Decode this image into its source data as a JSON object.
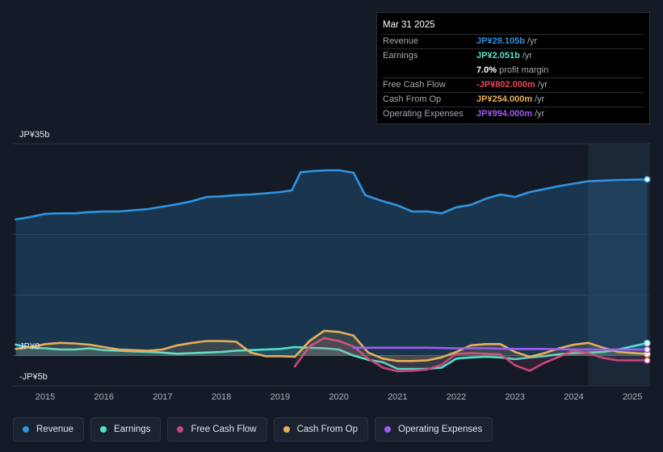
{
  "tooltip": {
    "date": "Mar 31 2025",
    "rows": [
      {
        "label": "Revenue",
        "value": "JP¥29.105b",
        "unit": "/yr"
      },
      {
        "label": "Earnings",
        "value": "JP¥2.051b",
        "unit": "/yr"
      },
      {
        "label": "",
        "value": "7.0%",
        "unit": "profit margin"
      },
      {
        "label": "Free Cash Flow",
        "value": "-JP¥802.000m",
        "unit": "/yr"
      },
      {
        "label": "Cash From Op",
        "value": "JP¥254.000m",
        "unit": "/yr"
      },
      {
        "label": "Operating Expenses",
        "value": "JP¥994.000m",
        "unit": "/yr"
      }
    ]
  },
  "legend": [
    {
      "label": "Revenue",
      "color": "#2e95e3"
    },
    {
      "label": "Earnings",
      "color": "#55e0cc"
    },
    {
      "label": "Free Cash Flow",
      "color": "#c7477a"
    },
    {
      "label": "Cash From Op",
      "color": "#e8ae5a"
    },
    {
      "label": "Operating Expenses",
      "color": "#9f5cf0"
    }
  ],
  "chart_data": {
    "type": "line",
    "title": "",
    "units": "JP¥ billions",
    "ylim": [
      -5,
      35
    ],
    "y_labels": [
      {
        "value": 35,
        "text": "JP¥35b"
      },
      {
        "value": 0,
        "text": "JP¥0"
      },
      {
        "value": -5,
        "text": "-JP¥5b"
      }
    ],
    "gridlines": [
      35,
      20,
      10,
      0,
      -5
    ],
    "xlim": [
      2014.45,
      2025.3
    ],
    "x_ticks": [
      "2015",
      "2016",
      "2017",
      "2018",
      "2019",
      "2020",
      "2021",
      "2022",
      "2023",
      "2024",
      "2025"
    ],
    "highlight_start": 2024.25,
    "series": [
      {
        "name": "Revenue",
        "color": "#2e95e3",
        "fill": true,
        "points": [
          [
            2014.5,
            22.5
          ],
          [
            2014.75,
            22.9
          ],
          [
            2015.0,
            23.4
          ],
          [
            2015.25,
            23.5
          ],
          [
            2015.5,
            23.5
          ],
          [
            2015.75,
            23.7
          ],
          [
            2016.0,
            23.8
          ],
          [
            2016.25,
            23.8
          ],
          [
            2016.5,
            24.0
          ],
          [
            2016.75,
            24.2
          ],
          [
            2017.0,
            24.6
          ],
          [
            2017.25,
            25.0
          ],
          [
            2017.5,
            25.5
          ],
          [
            2017.75,
            26.2
          ],
          [
            2018.0,
            26.3
          ],
          [
            2018.25,
            26.5
          ],
          [
            2018.5,
            26.6
          ],
          [
            2018.75,
            26.8
          ],
          [
            2019.0,
            27.0
          ],
          [
            2019.2,
            27.3
          ],
          [
            2019.35,
            30.3
          ],
          [
            2019.6,
            30.5
          ],
          [
            2019.8,
            30.6
          ],
          [
            2020.0,
            30.6
          ],
          [
            2020.25,
            30.2
          ],
          [
            2020.45,
            26.5
          ],
          [
            2020.75,
            25.5
          ],
          [
            2021.0,
            24.8
          ],
          [
            2021.25,
            23.8
          ],
          [
            2021.5,
            23.8
          ],
          [
            2021.75,
            23.5
          ],
          [
            2022.0,
            24.5
          ],
          [
            2022.25,
            24.9
          ],
          [
            2022.5,
            25.9
          ],
          [
            2022.75,
            26.6
          ],
          [
            2023.0,
            26.2
          ],
          [
            2023.25,
            27.0
          ],
          [
            2023.5,
            27.5
          ],
          [
            2023.75,
            28.0
          ],
          [
            2024.0,
            28.4
          ],
          [
            2024.25,
            28.8
          ],
          [
            2024.5,
            28.9
          ],
          [
            2024.75,
            29.0
          ],
          [
            2025.25,
            29.1
          ]
        ]
      },
      {
        "name": "Earnings",
        "color": "#55e0cc",
        "fill": true,
        "points": [
          [
            2014.5,
            1.8
          ],
          [
            2014.75,
            1.3
          ],
          [
            2015.0,
            1.2
          ],
          [
            2015.25,
            1.0
          ],
          [
            2015.5,
            1.0
          ],
          [
            2015.75,
            1.2
          ],
          [
            2016.0,
            0.9
          ],
          [
            2016.25,
            0.8
          ],
          [
            2016.5,
            0.7
          ],
          [
            2016.75,
            0.6
          ],
          [
            2017.0,
            0.5
          ],
          [
            2017.25,
            0.3
          ],
          [
            2017.5,
            0.4
          ],
          [
            2017.75,
            0.5
          ],
          [
            2018.0,
            0.6
          ],
          [
            2018.25,
            0.8
          ],
          [
            2018.5,
            0.9
          ],
          [
            2018.75,
            1.0
          ],
          [
            2019.0,
            1.1
          ],
          [
            2019.25,
            1.4
          ],
          [
            2019.5,
            1.3
          ],
          [
            2019.75,
            1.2
          ],
          [
            2020.0,
            1.0
          ],
          [
            2020.25,
            0.0
          ],
          [
            2020.5,
            -0.7
          ],
          [
            2020.75,
            -1.1
          ],
          [
            2021.0,
            -2.2
          ],
          [
            2021.25,
            -2.2
          ],
          [
            2021.5,
            -2.2
          ],
          [
            2021.75,
            -2.0
          ],
          [
            2022.0,
            -0.5
          ],
          [
            2022.25,
            -0.3
          ],
          [
            2022.5,
            -0.2
          ],
          [
            2022.75,
            -0.3
          ],
          [
            2023.0,
            -0.6
          ],
          [
            2023.25,
            -0.3
          ],
          [
            2023.5,
            -0.1
          ],
          [
            2023.75,
            0.2
          ],
          [
            2024.0,
            0.4
          ],
          [
            2024.25,
            0.5
          ],
          [
            2024.5,
            0.6
          ],
          [
            2024.75,
            1.0
          ],
          [
            2025.25,
            2.05
          ]
        ]
      },
      {
        "name": "Free Cash Flow",
        "color": "#c7477a",
        "fill": true,
        "points": [
          [
            2019.25,
            -1.8
          ],
          [
            2019.5,
            1.5
          ],
          [
            2019.75,
            2.9
          ],
          [
            2020.0,
            2.4
          ],
          [
            2020.25,
            1.5
          ],
          [
            2020.5,
            -0.5
          ],
          [
            2020.75,
            -2.0
          ],
          [
            2021.0,
            -2.6
          ],
          [
            2021.25,
            -2.5
          ],
          [
            2021.5,
            -2.3
          ],
          [
            2021.75,
            -1.5
          ],
          [
            2022.0,
            0.3
          ],
          [
            2022.25,
            0.4
          ],
          [
            2022.5,
            0.3
          ],
          [
            2022.75,
            0.2
          ],
          [
            2023.0,
            -1.6
          ],
          [
            2023.25,
            -2.5
          ],
          [
            2023.5,
            -1.2
          ],
          [
            2023.75,
            -0.2
          ],
          [
            2024.0,
            0.8
          ],
          [
            2024.25,
            0.4
          ],
          [
            2024.5,
            -0.4
          ],
          [
            2024.75,
            -0.8
          ],
          [
            2025.25,
            -0.8
          ]
        ]
      },
      {
        "name": "Cash From Op",
        "color": "#e8ae5a",
        "fill": true,
        "points": [
          [
            2014.5,
            1.1
          ],
          [
            2014.75,
            1.4
          ],
          [
            2015.0,
            1.9
          ],
          [
            2015.25,
            2.1
          ],
          [
            2015.5,
            2.0
          ],
          [
            2015.75,
            1.8
          ],
          [
            2016.0,
            1.4
          ],
          [
            2016.25,
            1.0
          ],
          [
            2016.5,
            0.9
          ],
          [
            2016.75,
            0.8
          ],
          [
            2017.0,
            1.0
          ],
          [
            2017.25,
            1.7
          ],
          [
            2017.5,
            2.1
          ],
          [
            2017.75,
            2.4
          ],
          [
            2018.0,
            2.4
          ],
          [
            2018.25,
            2.3
          ],
          [
            2018.5,
            0.5
          ],
          [
            2018.75,
            -0.1
          ],
          [
            2019.0,
            -0.1
          ],
          [
            2019.25,
            -0.2
          ],
          [
            2019.5,
            2.4
          ],
          [
            2019.75,
            4.1
          ],
          [
            2020.0,
            3.9
          ],
          [
            2020.25,
            3.3
          ],
          [
            2020.5,
            0.5
          ],
          [
            2020.75,
            -0.5
          ],
          [
            2021.0,
            -0.9
          ],
          [
            2021.25,
            -0.9
          ],
          [
            2021.5,
            -0.8
          ],
          [
            2021.75,
            -0.3
          ],
          [
            2022.0,
            0.6
          ],
          [
            2022.25,
            1.7
          ],
          [
            2022.5,
            1.9
          ],
          [
            2022.75,
            1.9
          ],
          [
            2023.0,
            0.6
          ],
          [
            2023.25,
            -0.2
          ],
          [
            2023.5,
            0.4
          ],
          [
            2023.75,
            1.2
          ],
          [
            2024.0,
            1.8
          ],
          [
            2024.25,
            2.1
          ],
          [
            2024.5,
            1.3
          ],
          [
            2024.75,
            0.6
          ],
          [
            2025.25,
            0.25
          ]
        ]
      },
      {
        "name": "Operating Expenses",
        "color": "#9f5cf0",
        "fill": false,
        "points": [
          [
            2020.25,
            1.3
          ],
          [
            2020.5,
            1.3
          ],
          [
            2021.0,
            1.3
          ],
          [
            2021.5,
            1.3
          ],
          [
            2022.0,
            1.2
          ],
          [
            2022.5,
            1.2
          ],
          [
            2023.0,
            1.1
          ],
          [
            2023.5,
            1.1
          ],
          [
            2024.0,
            1.0
          ],
          [
            2024.5,
            1.0
          ],
          [
            2025.25,
            0.99
          ]
        ]
      }
    ]
  }
}
